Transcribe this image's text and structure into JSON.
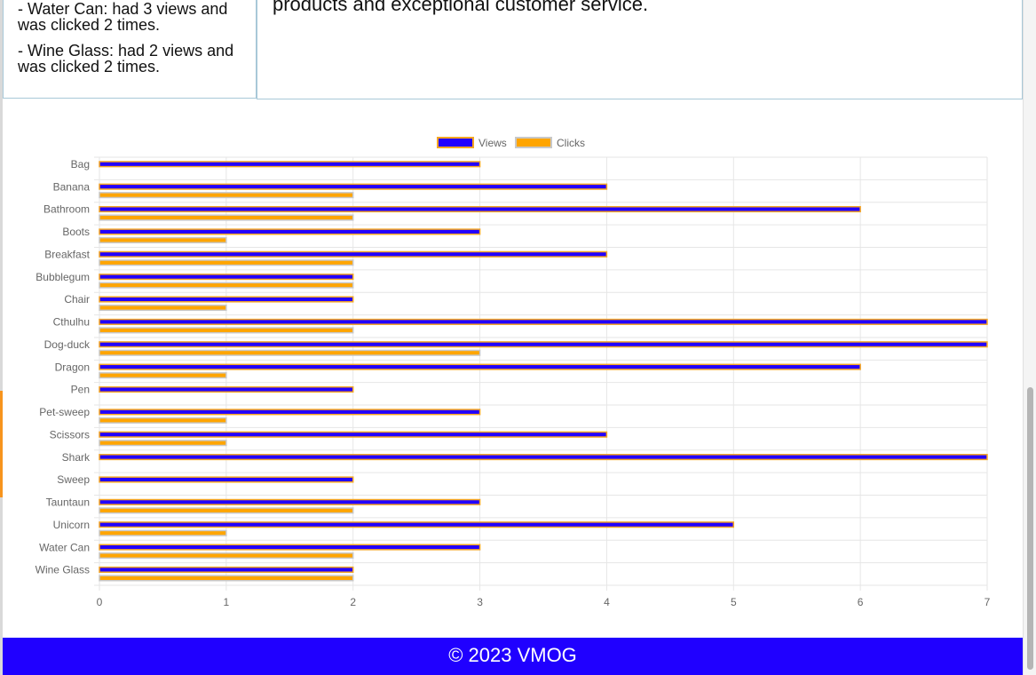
{
  "summary": {
    "items": [
      "- Water Can: had 3 views and was clicked 2 times.",
      "- Wine Glass: had 2 views and was clicked 2 times."
    ]
  },
  "intro": {
    "text": "products and exceptional customer service."
  },
  "footer": {
    "text": "© 2023 VMOG"
  },
  "colors": {
    "views_fill": "#2200ff",
    "views_border": "#f5a623",
    "clicks_fill": "#ffa500",
    "clicks_border": "#c8c8c8",
    "footer_bg": "#2000ff"
  },
  "chart_data": {
    "type": "bar",
    "orientation": "horizontal",
    "categories": [
      "Bag",
      "Banana",
      "Bathroom",
      "Boots",
      "Breakfast",
      "Bubblegum",
      "Chair",
      "Cthulhu",
      "Dog-duck",
      "Dragon",
      "Pen",
      "Pet-sweep",
      "Scissors",
      "Shark",
      "Sweep",
      "Tauntaun",
      "Unicorn",
      "Water Can",
      "Wine Glass"
    ],
    "series": [
      {
        "name": "Views",
        "values": [
          3,
          4,
          6,
          3,
          4,
          2,
          2,
          7,
          7,
          6,
          2,
          3,
          4,
          7,
          2,
          3,
          5,
          3,
          2
        ]
      },
      {
        "name": "Clicks",
        "values": [
          0,
          2,
          2,
          1,
          2,
          2,
          1,
          2,
          3,
          1,
          0,
          1,
          1,
          0,
          0,
          2,
          1,
          2,
          2
        ]
      }
    ],
    "xlim": [
      0,
      7
    ],
    "xticks": [
      "0",
      "1",
      "2",
      "3",
      "4",
      "5",
      "6",
      "7"
    ],
    "legend_position": "top",
    "grid": true
  }
}
